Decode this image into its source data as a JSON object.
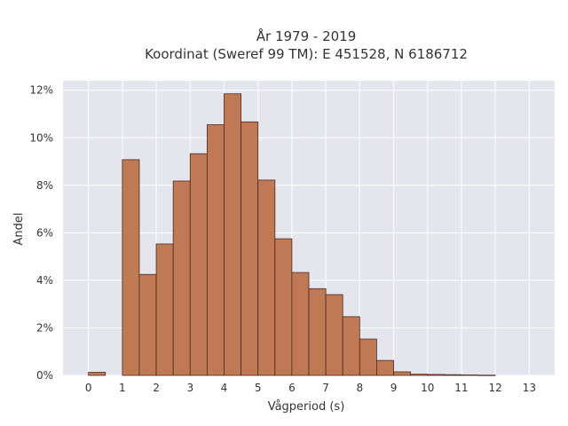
{
  "chart_data": {
    "type": "bar",
    "title": "År 1979 - 2019",
    "subtitle": "Koordinat (Sweref 99 TM): E 451528, N 6186712",
    "xlabel": "Vågperiod (s)",
    "ylabel": "Andel",
    "bin_width": 0.5,
    "bins": [
      {
        "x": 0.0,
        "value": 0.13
      },
      {
        "x": 1.0,
        "value": 9.08
      },
      {
        "x": 1.5,
        "value": 4.25
      },
      {
        "x": 2.0,
        "value": 5.53
      },
      {
        "x": 2.5,
        "value": 8.18
      },
      {
        "x": 3.0,
        "value": 9.33
      },
      {
        "x": 3.5,
        "value": 10.55
      },
      {
        "x": 4.0,
        "value": 11.85
      },
      {
        "x": 4.5,
        "value": 10.67
      },
      {
        "x": 5.0,
        "value": 8.22
      },
      {
        "x": 5.5,
        "value": 5.75
      },
      {
        "x": 6.0,
        "value": 4.33
      },
      {
        "x": 6.5,
        "value": 3.65
      },
      {
        "x": 7.0,
        "value": 3.4
      },
      {
        "x": 7.5,
        "value": 2.47
      },
      {
        "x": 8.0,
        "value": 1.53
      },
      {
        "x": 8.5,
        "value": 0.63
      },
      {
        "x": 9.0,
        "value": 0.15
      },
      {
        "x": 9.5,
        "value": 0.05
      },
      {
        "x": 10.0,
        "value": 0.04
      },
      {
        "x": 10.5,
        "value": 0.03
      },
      {
        "x": 11.0,
        "value": 0.02
      },
      {
        "x": 11.5,
        "value": 0.01
      }
    ],
    "x_ticks": [
      "0",
      "1",
      "2",
      "3",
      "4",
      "5",
      "6",
      "7",
      "8",
      "9",
      "10",
      "11",
      "12",
      "13"
    ],
    "y_ticks": [
      "0%",
      "2%",
      "4%",
      "6%",
      "8%",
      "10%",
      "12%"
    ],
    "xlim": [
      -0.75,
      13.75
    ],
    "ylim": [
      0,
      12.4
    ],
    "grid": true,
    "colors": {
      "bar": "#bf7a55",
      "bar_edge": "#4a2a1c",
      "plot_bg": "#e5e5ee",
      "grid": "#ffffff",
      "text": "#333333"
    }
  }
}
